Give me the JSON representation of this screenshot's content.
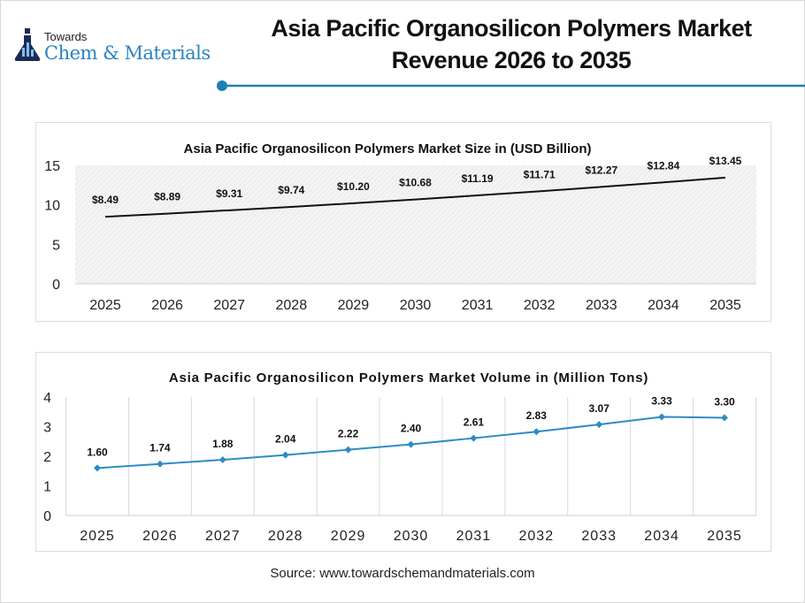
{
  "header": {
    "logo_line1": "Towards",
    "logo_line2": "Chem & Materials",
    "title_line1": "Asia Pacific Organosilicon Polymers Market",
    "title_line2": "Revenue 2026 to 2035",
    "accent_color": "#1d7fb5"
  },
  "chart_data": [
    {
      "type": "line",
      "title": "Asia Pacific Organosilicon Polymers Market Size in (USD Billion)",
      "categories": [
        "2025",
        "2026",
        "2027",
        "2028",
        "2029",
        "2030",
        "2031",
        "2032",
        "2033",
        "2034",
        "2035"
      ],
      "values": [
        8.49,
        8.89,
        9.31,
        9.74,
        10.2,
        10.68,
        11.19,
        11.71,
        12.27,
        12.84,
        13.45
      ],
      "data_labels": [
        "$8.49",
        "$8.89",
        "$9.31",
        "$9.74",
        "$10.20",
        "$10.68",
        "$11.19",
        "$11.71",
        "$12.27",
        "$12.84",
        "$13.45"
      ],
      "yticks": [
        "0",
        "5",
        "10",
        "15"
      ],
      "ylim": [
        0,
        15
      ],
      "line_color": "#111111",
      "grid": false
    },
    {
      "type": "line",
      "title": "Asia Pacific Organosilicon Polymers Market Volume in (Million Tons)",
      "categories": [
        "2025",
        "2026",
        "2027",
        "2028",
        "2029",
        "2030",
        "2031",
        "2032",
        "2033",
        "2034",
        "2035"
      ],
      "values": [
        1.6,
        1.74,
        1.88,
        2.04,
        2.22,
        2.4,
        2.61,
        2.83,
        3.07,
        3.33,
        3.3
      ],
      "data_labels": [
        "1.60",
        "1.74",
        "1.88",
        "2.04",
        "2.22",
        "2.40",
        "2.61",
        "2.83",
        "3.07",
        "3.33",
        "3.30"
      ],
      "yticks": [
        "0",
        "1",
        "2",
        "3",
        "4"
      ],
      "ylim": [
        0,
        4
      ],
      "line_color": "#2e8bc6",
      "markers": "diamond",
      "grid": "vertical"
    }
  ],
  "footer": {
    "source": "Source: www.towardschemandmaterials.com"
  }
}
